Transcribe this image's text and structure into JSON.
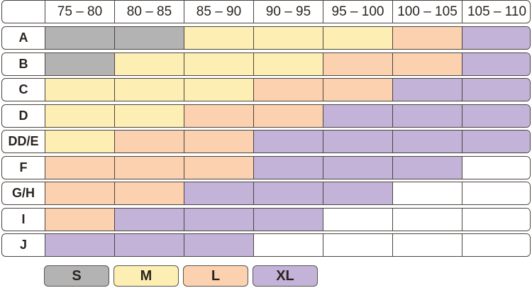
{
  "colors": {
    "S": "#b3b3b3",
    "M": "#fdefb3",
    "L": "#fbd1b0",
    "XL": "#c3b3d9",
    "": "#ffffff"
  },
  "columns": [
    "75 – 80",
    "80 – 85",
    "85 – 90",
    "90 – 95",
    "95 – 100",
    "100 – 105",
    "105 – 110"
  ],
  "rows": [
    {
      "label": "A",
      "sizes": [
        "S",
        "S",
        "M",
        "M",
        "M",
        "L",
        "XL"
      ]
    },
    {
      "label": "B",
      "sizes": [
        "S",
        "M",
        "M",
        "M",
        "L",
        "L",
        "XL"
      ]
    },
    {
      "label": "C",
      "sizes": [
        "M",
        "M",
        "M",
        "L",
        "L",
        "XL",
        "XL"
      ]
    },
    {
      "label": "D",
      "sizes": [
        "M",
        "M",
        "L",
        "L",
        "XL",
        "XL",
        "XL"
      ]
    },
    {
      "label": "DD/E",
      "sizes": [
        "M",
        "L",
        "L",
        "XL",
        "XL",
        "XL",
        "XL"
      ]
    },
    {
      "label": "F",
      "sizes": [
        "L",
        "L",
        "L",
        "XL",
        "XL",
        "XL",
        ""
      ]
    },
    {
      "label": "G/H",
      "sizes": [
        "L",
        "L",
        "XL",
        "XL",
        "XL",
        "",
        ""
      ]
    },
    {
      "label": "I",
      "sizes": [
        "L",
        "XL",
        "XL",
        "XL",
        "",
        "",
        ""
      ]
    },
    {
      "label": "J",
      "sizes": [
        "XL",
        "XL",
        "XL",
        "",
        "",
        "",
        ""
      ]
    }
  ],
  "legend": [
    "S",
    "M",
    "L",
    "XL"
  ]
}
